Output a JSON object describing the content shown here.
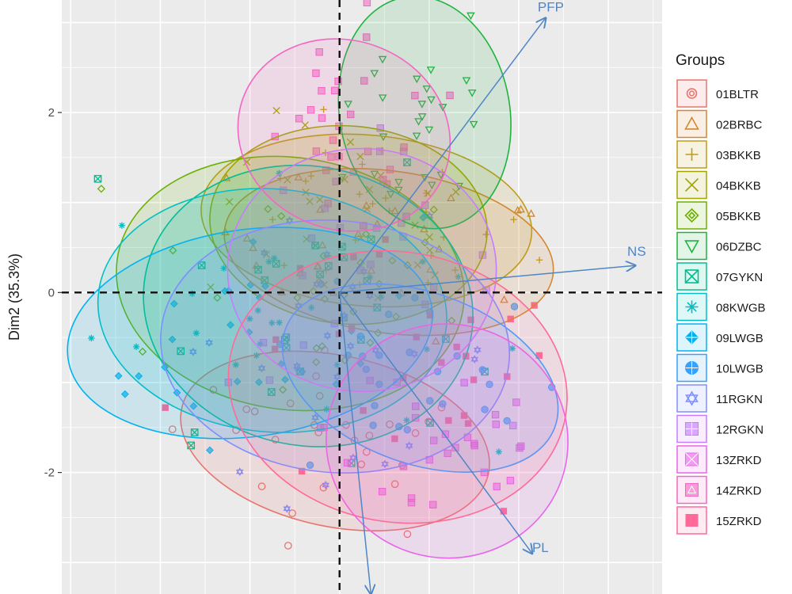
{
  "chart_data": {
    "type": "scatter",
    "subtype": "pca-biplot",
    "title": "",
    "xlabel": "",
    "ylabel": "Dim2 (35.3%)",
    "xlim": [
      -3.1,
      3.6
    ],
    "ylim": [
      -3.35,
      3.25
    ],
    "y_ticks": [
      -2,
      0,
      2
    ],
    "y_tick_labels": [
      "-2",
      "0",
      "2"
    ],
    "grid": true,
    "background": "#ebebeb",
    "legend_title": "Groups",
    "legend_position": "right",
    "series": [
      {
        "name": "01BLTR",
        "color": "#e7756d",
        "shape": "circle",
        "ellipse": {
          "cx": -0.05,
          "cy": -1.65,
          "rx": 1.75,
          "ry": 0.95,
          "angle": -12
        }
      },
      {
        "name": "02BRBC",
        "color": "#d5862e",
        "shape": "triangle",
        "ellipse": {
          "cx": 0.55,
          "cy": 0.45,
          "rx": 1.85,
          "ry": 0.9,
          "angle": -8
        }
      },
      {
        "name": "03BKKB",
        "color": "#c09b18",
        "shape": "plus",
        "ellipse": {
          "cx": 0.3,
          "cy": 0.8,
          "rx": 1.85,
          "ry": 0.95,
          "angle": -5
        }
      },
      {
        "name": "04BKKB",
        "color": "#a3a500",
        "shape": "cross",
        "ellipse": {
          "cx": 0.1,
          "cy": 0.75,
          "rx": 1.55,
          "ry": 1.1,
          "angle": -5
        }
      },
      {
        "name": "05BKKB",
        "color": "#6bb100",
        "shape": "diamond",
        "ellipse": {
          "cx": -0.55,
          "cy": 0.1,
          "rx": 1.95,
          "ry": 1.4,
          "angle": -8
        }
      },
      {
        "name": "06DZBC",
        "color": "#1fb33f",
        "shape": "triangle-down",
        "ellipse": {
          "cx": 0.95,
          "cy": 2.0,
          "rx": 0.95,
          "ry": 1.3,
          "angle": 10
        }
      },
      {
        "name": "07GYKN",
        "color": "#00be91",
        "shape": "square-cross",
        "ellipse": {
          "cx": -0.35,
          "cy": -0.15,
          "rx": 1.85,
          "ry": 1.55,
          "angle": -12
        }
      },
      {
        "name": "08KWGB",
        "color": "#00bfc4",
        "shape": "asterisk",
        "ellipse": {
          "cx": -0.75,
          "cy": -0.2,
          "rx": 1.95,
          "ry": 1.35,
          "angle": -5
        }
      },
      {
        "name": "09LWGB",
        "color": "#00b3f0",
        "shape": "diamond-plus",
        "ellipse": {
          "cx": -1.0,
          "cy": -0.45,
          "rx": 2.05,
          "ry": 1.15,
          "angle": 8
        }
      },
      {
        "name": "10LWGB",
        "color": "#35a2ff",
        "shape": "circle-plus",
        "ellipse": {
          "cx": 0.9,
          "cy": -0.95,
          "rx": 1.6,
          "ry": 0.95,
          "angle": -20
        }
      },
      {
        "name": "11RGKN",
        "color": "#7e8fff",
        "shape": "star",
        "ellipse": {
          "cx": -0.05,
          "cy": -0.6,
          "rx": 1.95,
          "ry": 1.4,
          "angle": -5
        }
      },
      {
        "name": "12RGKN",
        "color": "#c77cff",
        "shape": "square-plus",
        "ellipse": {
          "cx": 0.25,
          "cy": 0.25,
          "rx": 1.5,
          "ry": 1.35,
          "angle": 0
        }
      },
      {
        "name": "13ZRKD",
        "color": "#ea64ec",
        "shape": "square-x",
        "ellipse": {
          "cx": 1.2,
          "cy": -1.65,
          "rx": 1.35,
          "ry": 1.3,
          "angle": -8
        }
      },
      {
        "name": "14ZRKD",
        "color": "#f565c4",
        "shape": "square-triangle",
        "ellipse": {
          "cx": 0.05,
          "cy": 1.75,
          "rx": 1.2,
          "ry": 1.05,
          "angle": -20
        }
      },
      {
        "name": "15ZRKD",
        "color": "#ff6a98",
        "shape": "square",
        "ellipse": {
          "cx": 0.65,
          "cy": -1.05,
          "rx": 1.9,
          "ry": 1.5,
          "angle": -10
        }
      }
    ],
    "vectors": [
      {
        "name": "PFP",
        "x": 2.3,
        "y": 3.05
      },
      {
        "name": "NS",
        "x": 3.3,
        "y": 0.3
      },
      {
        "name": "PL",
        "x": 2.15,
        "y": -2.9
      },
      {
        "name": "",
        "x": 0.35,
        "y": -3.35
      }
    ],
    "reference_lines": {
      "x0": true,
      "y0": true
    }
  }
}
